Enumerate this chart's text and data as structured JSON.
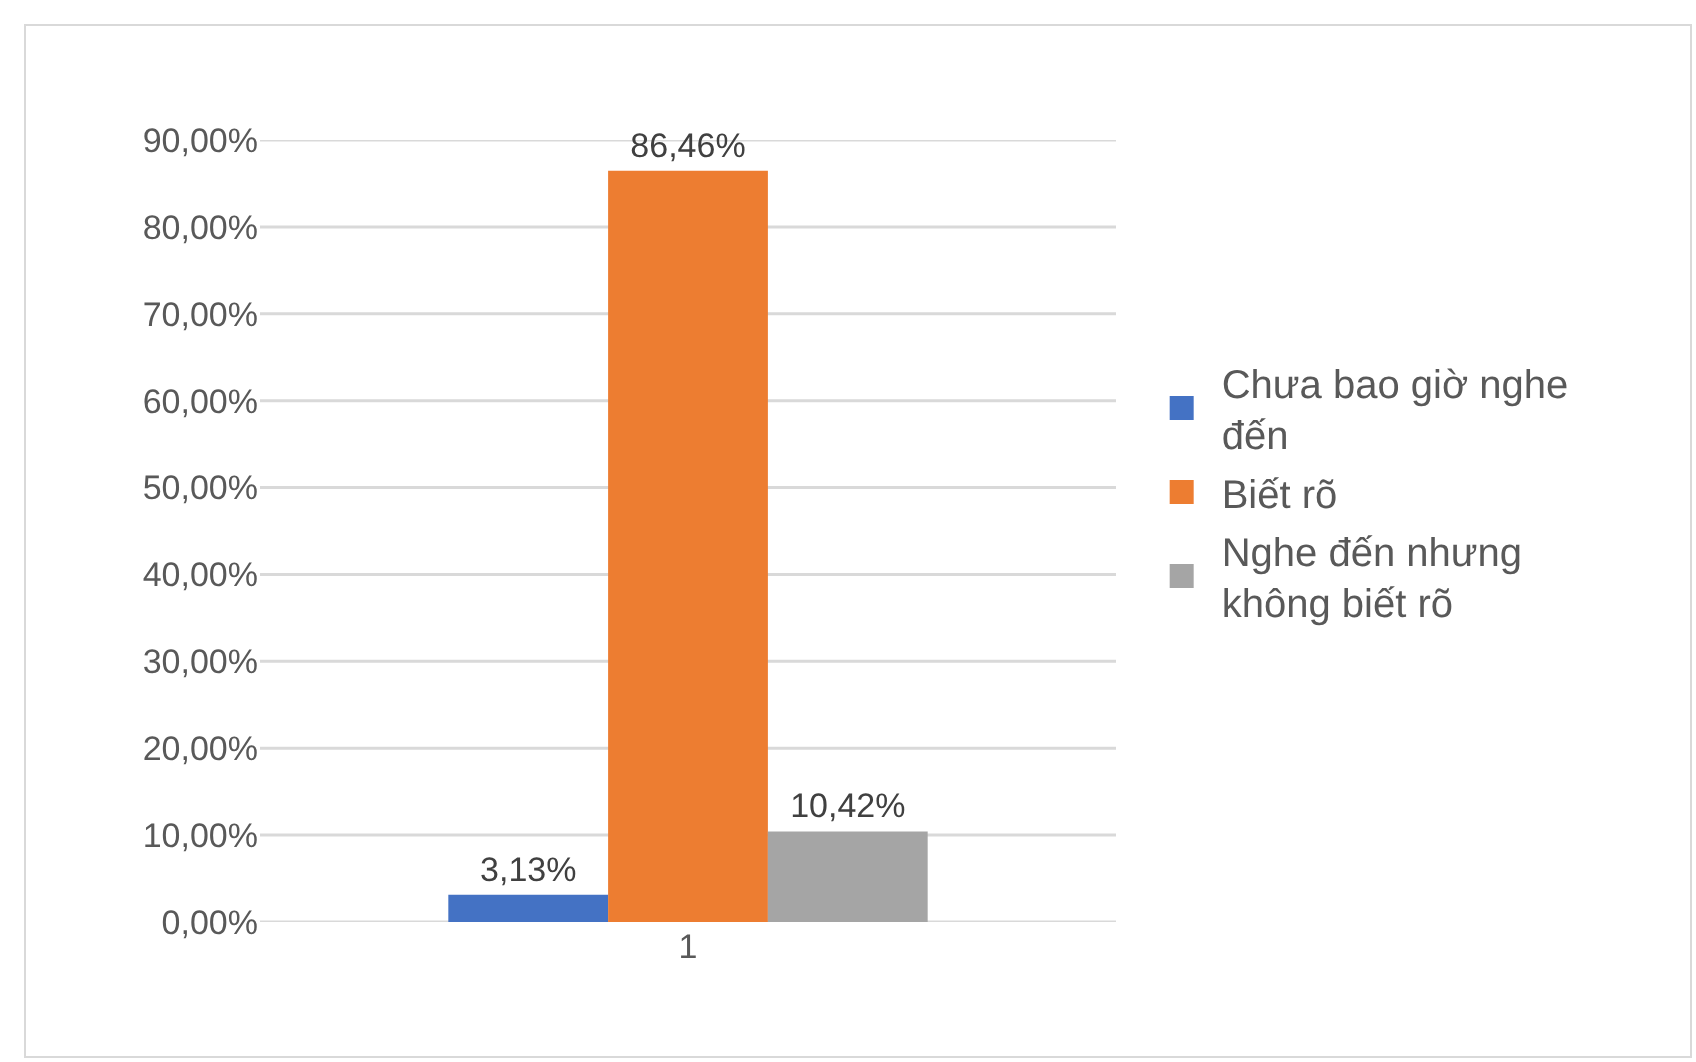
{
  "chart_data": {
    "type": "bar",
    "categories": [
      "1"
    ],
    "series": [
      {
        "name": "Chưa bao giờ nghe đến",
        "color": "#4472c4",
        "values": [
          3.13
        ],
        "value_labels": [
          "3,13%"
        ]
      },
      {
        "name": "Biết rõ",
        "color": "#ed7d31",
        "values": [
          86.46
        ],
        "value_labels": [
          "86,46%"
        ]
      },
      {
        "name": "Nghe đến nhưng không biết rõ",
        "color": "#a5a5a5",
        "values": [
          10.42
        ],
        "value_labels": [
          "10,42%"
        ]
      }
    ],
    "ylim": [
      0,
      90
    ],
    "yticks": [
      {
        "value": 0,
        "label": "0,00%"
      },
      {
        "value": 10,
        "label": "10,00%"
      },
      {
        "value": 20,
        "label": "20,00%"
      },
      {
        "value": 30,
        "label": "30,00%"
      },
      {
        "value": 40,
        "label": "40,00%"
      },
      {
        "value": 50,
        "label": "50,00%"
      },
      {
        "value": 60,
        "label": "60,00%"
      },
      {
        "value": 70,
        "label": "70,00%"
      },
      {
        "value": 80,
        "label": "80,00%"
      },
      {
        "value": 90,
        "label": "90,00%"
      }
    ],
    "grid": "y",
    "legend": "right"
  }
}
